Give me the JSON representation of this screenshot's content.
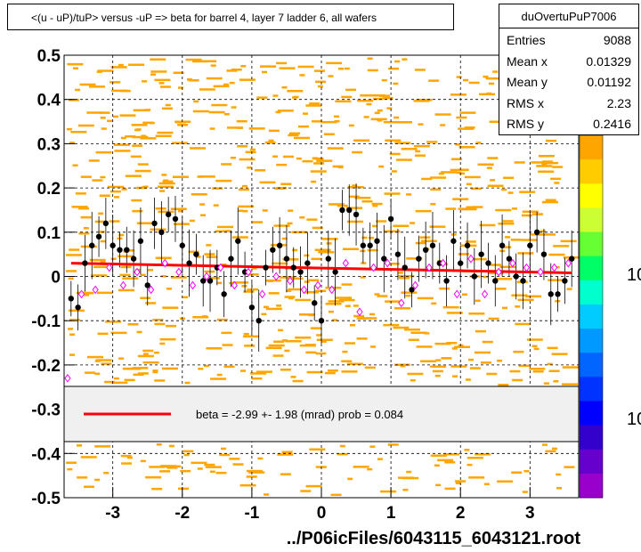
{
  "title": "<(u - uP)/tuP> versus  -uP => beta for barrel 4, layer 7 ladder 6, all wafers",
  "stats": {
    "name": "duOvertuPuP7006",
    "rows": [
      {
        "label": "Entries",
        "value": "9088"
      },
      {
        "label": "Mean x",
        "value": "0.01329"
      },
      {
        "label": "Mean y",
        "value": "0.01192"
      },
      {
        "label": "RMS x",
        "value": "2.23"
      },
      {
        "label": "RMS y",
        "value": "0.2416"
      }
    ]
  },
  "legend": {
    "text": "beta =   -2.99 +-  1.98 (mrad) prob = 0.084",
    "line_color": "#ff0000"
  },
  "file_label": "../P06icFiles/6043115_6043121.root",
  "z_axis_labels": [
    "10",
    "10"
  ],
  "colors": {
    "background_2d": "#ffa500",
    "black_points": "#000000",
    "magenta_points": "#ff00ff",
    "fit_line": "#ff0000"
  },
  "chart_data": {
    "type": "scatter",
    "xlim": [
      -3.7,
      3.7
    ],
    "ylim": [
      -0.5,
      0.5
    ],
    "x_ticks": [
      -3,
      -2,
      -1,
      0,
      1,
      2,
      3
    ],
    "x_tick_labels": [
      "-3",
      "-2",
      "-1",
      "0",
      "1",
      "2",
      "3"
    ],
    "y_ticks": [
      -0.5,
      -0.4,
      -0.3,
      -0.2,
      -0.1,
      0,
      0.1,
      0.2,
      0.3,
      0.4,
      0.5
    ],
    "y_tick_labels": [
      "-0.5",
      "-0.4",
      "-0.3",
      "-0.2",
      "-0.1",
      "0",
      "0.1",
      "0.2",
      "0.3",
      "0.4",
      "0.5"
    ],
    "grid": true,
    "fit": {
      "x": [
        -3.6,
        3.6
      ],
      "y": [
        0.03,
        0.008
      ]
    },
    "series": [
      {
        "marker": "filled-circle",
        "x": [
          -3.6,
          -3.5,
          -3.4,
          -3.3,
          -3.2,
          -3.1,
          -3.0,
          -2.9,
          -2.8,
          -2.7,
          -2.6,
          -2.5,
          -2.4,
          -2.3,
          -2.2,
          -2.1,
          -2.0,
          -1.9,
          -1.8,
          -1.7,
          -1.6,
          -1.5,
          -1.4,
          -1.3,
          -1.2,
          -1.1,
          -1.0,
          -0.9,
          -0.8,
          -0.7,
          -0.6,
          -0.5,
          -0.4,
          -0.3,
          -0.2,
          -0.1,
          0.0,
          0.1,
          0.2,
          0.3,
          0.4,
          0.5,
          0.6,
          0.7,
          0.8,
          0.9,
          1.0,
          1.1,
          1.2,
          1.3,
          1.4,
          1.5,
          1.6,
          1.7,
          1.8,
          1.9,
          2.0,
          2.1,
          2.2,
          2.3,
          2.4,
          2.5,
          2.6,
          2.7,
          2.8,
          2.9,
          3.0,
          3.1,
          3.2,
          3.3,
          3.4,
          3.5,
          3.6
        ],
        "y": [
          -0.05,
          -0.07,
          0.03,
          0.07,
          0.09,
          0.12,
          0.07,
          0.06,
          0.06,
          0.04,
          0.08,
          -0.02,
          0.12,
          0.1,
          0.14,
          0.13,
          0.07,
          0.03,
          0.05,
          -0.01,
          -0.01,
          0.02,
          -0.04,
          0.04,
          0.08,
          0.01,
          -0.07,
          -0.1,
          0.02,
          0.06,
          0.07,
          0.04,
          0.02,
          0.01,
          0.03,
          -0.06,
          -0.1,
          0.04,
          0.01,
          0.15,
          0.15,
          0.14,
          0.07,
          0.07,
          0.08,
          0.04,
          0.13,
          0.05,
          0.02,
          -0.03,
          0.04,
          0.06,
          0.07,
          0.03,
          -0.01,
          0.08,
          0.03,
          0.07,
          0.0,
          0.05,
          0.03,
          -0.01,
          0.07,
          0.04,
          0.0,
          -0.01,
          0.07,
          0.1,
          0.05,
          -0.04,
          -0.04,
          -0.01,
          0.04
        ]
      },
      {
        "marker": "open-diamond",
        "x": [
          -3.65,
          -3.45,
          -3.25,
          -3.05,
          -2.85,
          -2.65,
          -2.45,
          -2.25,
          -2.05,
          -1.85,
          -1.65,
          -1.45,
          -1.25,
          -1.05,
          -0.85,
          -0.65,
          -0.45,
          -0.25,
          -0.05,
          0.15,
          0.35,
          0.55,
          0.75,
          0.95,
          1.15,
          1.35,
          1.55,
          1.75,
          1.95,
          2.15,
          2.35,
          2.55,
          2.75,
          2.95,
          3.15,
          3.35,
          3.55
        ],
        "y": [
          -0.23,
          -0.04,
          -0.03,
          0.02,
          -0.02,
          0.01,
          -0.03,
          0.03,
          0.01,
          -0.02,
          0.0,
          0.02,
          -0.02,
          0.01,
          -0.04,
          0.0,
          -0.01,
          -0.03,
          -0.02,
          -0.03,
          0.03,
          -0.08,
          0.02,
          0.03,
          -0.06,
          -0.02,
          0.02,
          0.03,
          -0.04,
          0.04,
          -0.04,
          0.01,
          0.03,
          0.02,
          0.01,
          0.02,
          0.03
        ]
      }
    ]
  }
}
